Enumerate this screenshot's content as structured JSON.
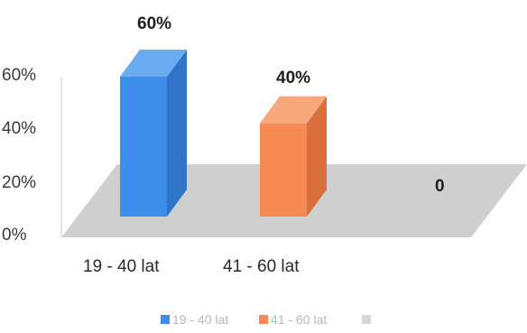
{
  "chart_data": {
    "type": "bar",
    "style": "3d-column",
    "categories": [
      "19 - 40 lat",
      "41 - 60 lat",
      ""
    ],
    "values": [
      60,
      40,
      0
    ],
    "data_labels": [
      "60%",
      "40%",
      "0"
    ],
    "ylim": [
      0,
      60
    ],
    "y_ticks": [
      "0%",
      "20%",
      "40%",
      "60%"
    ],
    "legend": {
      "position": "bottom",
      "entries": [
        {
          "label": "19 - 40 lat",
          "color": "#3d8ee8"
        },
        {
          "label": "41 - 60 lat",
          "color": "#f58a55"
        },
        {
          "label": "",
          "color": "#d6d6d6"
        }
      ]
    },
    "colors": {
      "bar1_front": "#3d8ee8",
      "bar1_side": "#2f74c8",
      "bar1_top": "#6aaaf0",
      "bar2_front": "#f58a55",
      "bar2_side": "#d96f3c",
      "bar2_top": "#f8a77d",
      "floor": "#cfcfcf"
    }
  }
}
